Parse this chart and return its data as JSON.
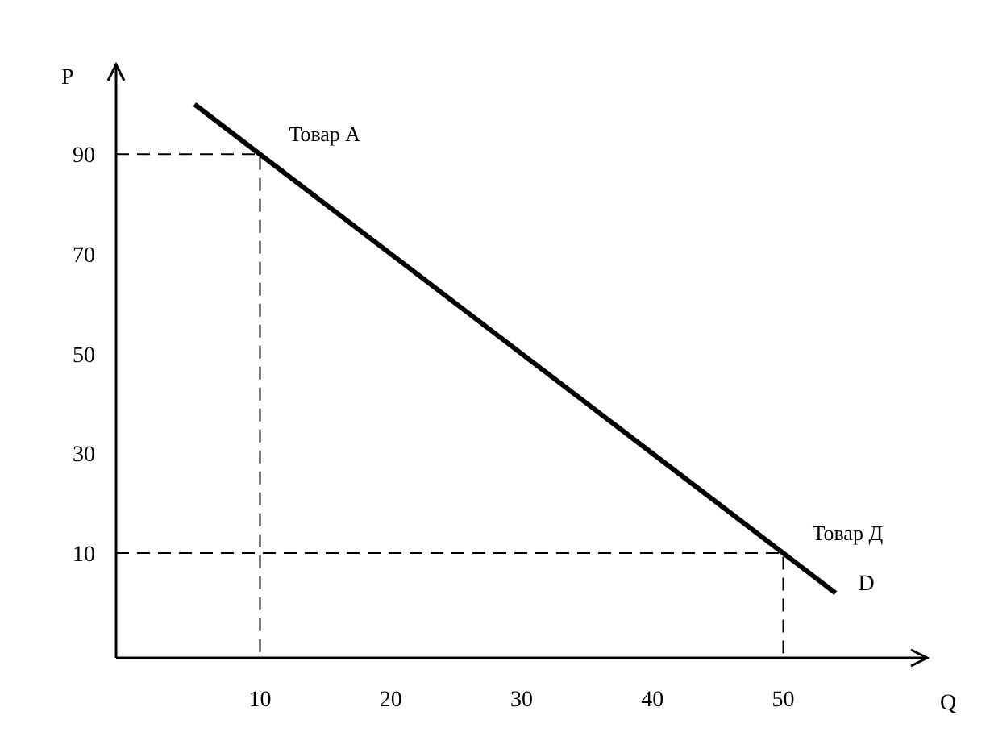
{
  "chart_data": {
    "type": "line",
    "xlabel": "Q",
    "ylabel": "P",
    "x": [
      5,
      54
    ],
    "series": [
      {
        "name": "D",
        "color": "#000000",
        "values": [
          100,
          2
        ]
      },
      {
        "color": "#000000",
        "x": [
          -1,
          10,
          10
        ],
        "values": [
          90,
          90,
          -11
        ],
        "line_style": "dashed"
      },
      {
        "color": "#000000",
        "x": [
          -1,
          50,
          50
        ],
        "values": [
          10,
          10,
          -11
        ],
        "line_style": "dashed"
      }
    ],
    "xlim": [
      -1,
      61
    ],
    "ylim": [
      -11,
      108
    ],
    "xticks": [
      10,
      20,
      30,
      40,
      50
    ],
    "yticks": [
      10,
      30,
      50,
      70,
      90
    ],
    "grid": false,
    "marker": "none",
    "line_style": "solid",
    "annotations": [
      {
        "text": "Товар А",
        "x": 10,
        "y": 90
      },
      {
        "text": "Товар Д",
        "x": 50,
        "y": 10
      }
    ]
  }
}
